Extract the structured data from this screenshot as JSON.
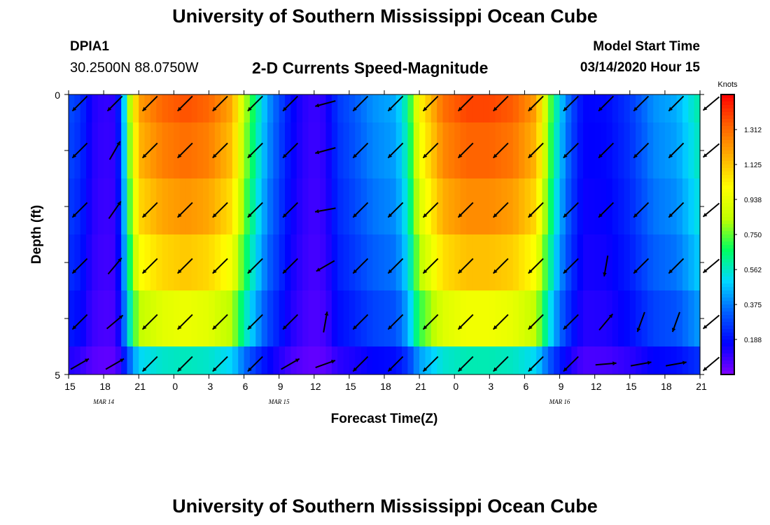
{
  "header": {
    "title_top": "University of Southern Mississippi Ocean Cube",
    "title_bottom": "University of Southern Mississippi Ocean Cube",
    "station": "DPIA1",
    "coordinates": "30.2500N 88.0750W",
    "chart_title": "2-D Currents Speed-Magnitude",
    "model_start_label": "Model Start Time",
    "model_start_time": "03/14/2020 Hour 15"
  },
  "chart_data": {
    "type": "heatmap",
    "title": "2-D Currents Speed-Magnitude",
    "xlabel": "Forecast Time(Z)",
    "ylabel": "Depth (ft)",
    "y_ticks": [
      "0",
      "5"
    ],
    "y_range": [
      0,
      5
    ],
    "x_tick_labels": [
      "15",
      "18",
      "21",
      "0",
      "3",
      "6",
      "9",
      "12",
      "15",
      "18",
      "21",
      "0",
      "3",
      "6",
      "9",
      "12",
      "15",
      "18",
      "21"
    ],
    "date_labels": [
      {
        "text": "MAR 14",
        "at_hour": 18
      },
      {
        "text": "MAR 15",
        "at_hour": 33
      },
      {
        "text": "MAR 16",
        "at_hour": 57
      }
    ],
    "x_range_hours": [
      0,
      54
    ],
    "colorbar": {
      "unit": "Knots",
      "ticks": [
        "1.312",
        "1.125",
        "0.938",
        "0.750",
        "0.562",
        "0.375",
        "0.188"
      ],
      "tick_values": [
        1.312,
        1.125,
        0.938,
        0.75,
        0.562,
        0.375,
        0.188
      ],
      "range": [
        0,
        1.5
      ],
      "colors": [
        "#8000ff",
        "#0000ff",
        "#0060ff",
        "#00d8ff",
        "#00ff60",
        "#c0ff00",
        "#ffff00",
        "#ffb000",
        "#ff6000",
        "#ff0000"
      ]
    },
    "depth_bins": 5,
    "speed_profile_surface": [
      [
        0,
        0.3
      ],
      [
        1,
        0.25
      ],
      [
        2,
        0.13
      ],
      [
        3,
        0.1
      ],
      [
        4,
        0.11
      ],
      [
        4.5,
        0.3
      ],
      [
        5,
        0.7
      ],
      [
        6,
        1.2
      ],
      [
        8,
        1.32
      ],
      [
        10,
        1.36
      ],
      [
        12,
        1.32
      ],
      [
        14,
        1.18
      ],
      [
        15,
        0.85
      ],
      [
        16,
        0.62
      ],
      [
        17,
        0.42
      ],
      [
        18,
        0.3
      ],
      [
        19,
        0.18
      ],
      [
        20,
        0.12
      ],
      [
        21,
        0.09
      ],
      [
        22,
        0.12
      ],
      [
        23,
        0.26
      ],
      [
        24,
        0.3
      ],
      [
        26,
        0.4
      ],
      [
        28,
        0.44
      ],
      [
        29,
        0.62
      ],
      [
        30,
        1.0
      ],
      [
        32,
        1.3
      ],
      [
        34,
        1.38
      ],
      [
        36,
        1.38
      ],
      [
        38,
        1.34
      ],
      [
        40,
        1.2
      ],
      [
        41,
        0.8
      ],
      [
        42,
        0.5
      ],
      [
        43,
        0.3
      ],
      [
        44,
        0.17
      ],
      [
        46,
        0.18
      ],
      [
        48,
        0.26
      ],
      [
        50,
        0.4
      ],
      [
        52,
        0.44
      ],
      [
        54,
        0.6
      ]
    ],
    "depth_factors": [
      1.0,
      0.96,
      0.9,
      0.82,
      0.7,
      0.42
    ],
    "vectors_note": "current direction arrows drawn per 3-hour step and depth level",
    "vector_directions_deg": [
      [
        135,
        135,
        135,
        135,
        135,
        135,
        135,
        165,
        135,
        135,
        135,
        135,
        135,
        135,
        135,
        135,
        135,
        135,
        140
      ],
      [
        135,
        -60,
        135,
        135,
        135,
        135,
        135,
        165,
        135,
        135,
        135,
        135,
        135,
        135,
        135,
        135,
        135,
        135,
        140
      ],
      [
        135,
        -55,
        135,
        135,
        135,
        135,
        135,
        170,
        135,
        135,
        135,
        135,
        135,
        135,
        135,
        135,
        135,
        135,
        140
      ],
      [
        135,
        -50,
        135,
        135,
        135,
        135,
        135,
        150,
        135,
        135,
        135,
        135,
        135,
        135,
        135,
        100,
        135,
        135,
        140
      ],
      [
        135,
        -40,
        135,
        135,
        135,
        135,
        135,
        -80,
        135,
        135,
        135,
        135,
        135,
        135,
        135,
        -50,
        110,
        110,
        140
      ],
      [
        -30,
        -30,
        135,
        135,
        135,
        135,
        -30,
        -20,
        135,
        135,
        135,
        135,
        135,
        135,
        135,
        -5,
        -10,
        -10,
        140
      ]
    ]
  }
}
